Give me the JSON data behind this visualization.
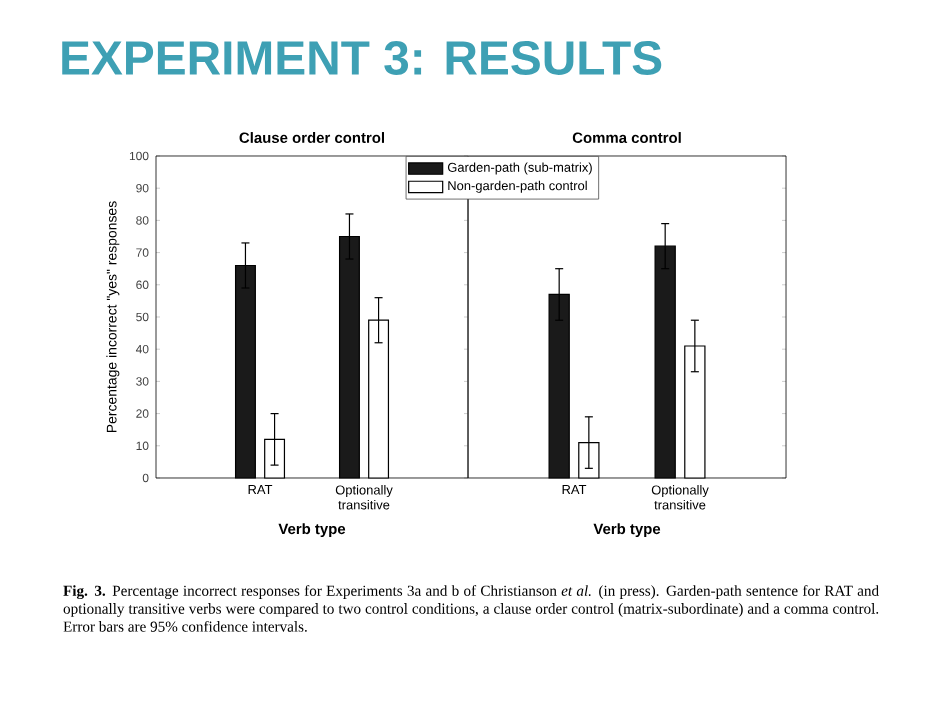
{
  "chart_data": [
    {
      "type": "bar",
      "title": "Clause order control",
      "xlabel": "Verb type",
      "ylabel": "Percentage incorrect \"yes\" responses",
      "categories": [
        "RAT",
        "Optionally transitive"
      ],
      "series": [
        {
          "name": "Garden-path (sub-matrix)",
          "color": "#1a1a1a",
          "values": [
            66,
            75
          ],
          "errors": [
            7,
            7
          ]
        },
        {
          "name": "Non-garden-path control",
          "color": "#ffffff",
          "values": [
            12,
            49
          ],
          "errors": [
            8,
            7
          ]
        }
      ],
      "ylim": [
        0,
        100
      ],
      "yticks": [
        0,
        10,
        20,
        30,
        40,
        50,
        60,
        70,
        80,
        90,
        100
      ],
      "legend": "top right",
      "annotations": [
        "EXPERIMENT 3: RESULTS",
        "**Fig. 3.** Percentage incorrect responses for Experiments 3a and b of Christianson *et al.* (in press). Garden-path sentence for RAT and optionally transitive verbs were compared to two control conditions, a clause order control (matrix-subordinate) and a comma control. Error bars are 95% confidence intervals."
      ]
    },
    {
      "type": "bar",
      "title": "Comma control",
      "xlabel": "Verb type",
      "categories": [
        "RAT",
        "Optionally transitive"
      ],
      "series": [
        {
          "color": "#1a1a1a",
          "values": [
            57,
            72
          ],
          "errors": [
            8,
            7
          ]
        },
        {
          "color": "#ffffff",
          "values": [
            11,
            41
          ],
          "errors": [
            8,
            8
          ]
        }
      ],
      "ylim": [
        0,
        100
      ],
      "yticks": [
        0,
        10,
        20,
        30,
        40,
        50,
        60,
        70,
        80,
        90,
        100
      ],
      "tick_labels": "x"
    }
  ]
}
